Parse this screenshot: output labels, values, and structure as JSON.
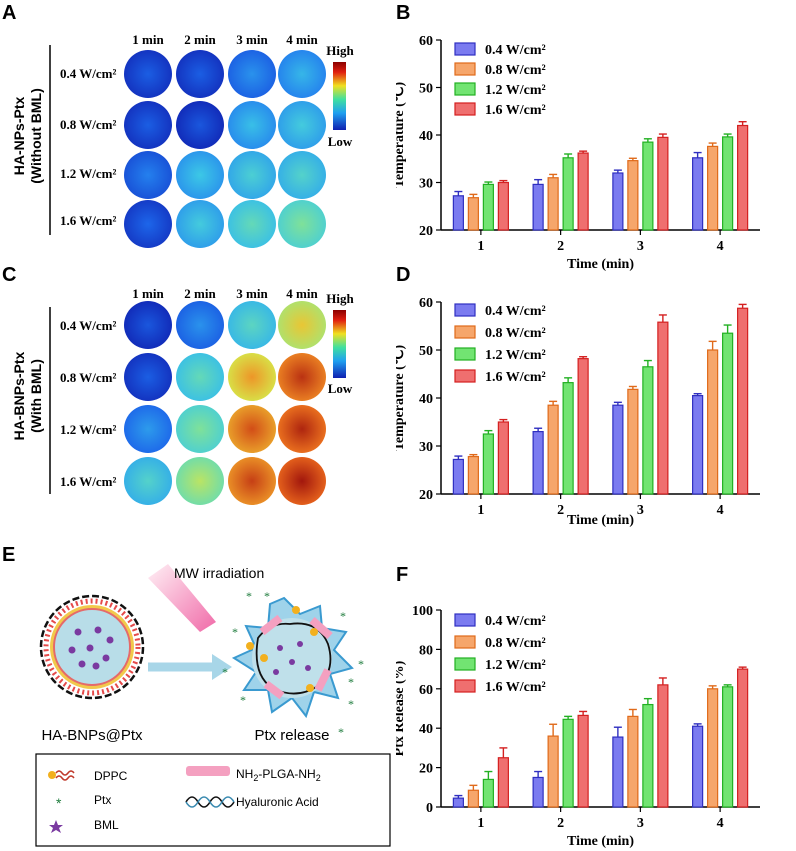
{
  "panel_labels": {
    "A": "A",
    "B": "B",
    "C": "C",
    "D": "D",
    "E": "E",
    "F": "F"
  },
  "colors": {
    "s1": "#7b7bf0",
    "s1_edge": "#2f2fc0",
    "s2": "#f6a66b",
    "s2_edge": "#e06a1a",
    "s3": "#72e472",
    "s3_edge": "#22b022",
    "s4": "#ef6f6f",
    "s4_edge": "#d42020"
  },
  "heatmap_A": {
    "group_label_line1": "HA-NPs-Ptx",
    "group_label_line2": "(Without BML)",
    "times": [
      "1 min",
      "2 min",
      "3 min",
      "4 min"
    ],
    "powers": [
      "0.4 W/cm²",
      "0.8 W/cm²",
      "1.2 W/cm²",
      "1.6 W/cm²"
    ],
    "scale_high": "High",
    "scale_low": "Low",
    "levels": [
      [
        0.1,
        0.1,
        0.22,
        0.3
      ],
      [
        0.1,
        0.08,
        0.32,
        0.36
      ],
      [
        0.18,
        0.34,
        0.38,
        0.4
      ],
      [
        0.12,
        0.36,
        0.44,
        0.5
      ]
    ]
  },
  "heatmap_C": {
    "group_label_line1": "HA-BNPs-Ptx",
    "group_label_line2": "(With BML)",
    "times": [
      "1 min",
      "2 min",
      "3 min",
      "4 min"
    ],
    "powers": [
      "0.4 W/cm²",
      "0.8 W/cm²",
      "1.2 W/cm²",
      "1.6 W/cm²"
    ],
    "scale_high": "High",
    "scale_low": "Low",
    "levels": [
      [
        0.08,
        0.22,
        0.42,
        0.68
      ],
      [
        0.1,
        0.44,
        0.74,
        0.88
      ],
      [
        0.24,
        0.5,
        0.84,
        0.9
      ],
      [
        0.4,
        0.58,
        0.86,
        0.92
      ]
    ]
  },
  "chart_data": [
    {
      "type": "bar",
      "id": "B",
      "categories": [
        "1",
        "2",
        "3",
        "4"
      ],
      "series": [
        {
          "name": "0.4 W/cm²",
          "values": [
            27.2,
            29.6,
            32.0,
            35.2
          ],
          "errors": [
            0.9,
            1.0,
            0.6,
            1.1
          ]
        },
        {
          "name": "0.8 W/cm²",
          "values": [
            26.8,
            31.0,
            34.6,
            37.6
          ],
          "errors": [
            0.7,
            0.7,
            0.5,
            0.7
          ]
        },
        {
          "name": "1.2 W/cm²",
          "values": [
            29.6,
            35.2,
            38.5,
            39.6
          ],
          "errors": [
            0.5,
            0.8,
            0.7,
            0.6
          ]
        },
        {
          "name": "1.6 W/cm²",
          "values": [
            30.0,
            36.2,
            39.5,
            42.0
          ],
          "errors": [
            0.4,
            0.4,
            0.7,
            0.8
          ]
        }
      ],
      "xlabel": "Time (min)",
      "ylabel": "Temperature (℃)",
      "ylim": [
        20,
        60
      ],
      "yticks": [
        20,
        30,
        40,
        50,
        60
      ],
      "legend": "top-left"
    },
    {
      "type": "bar",
      "id": "D",
      "categories": [
        "1",
        "2",
        "3",
        "4"
      ],
      "series": [
        {
          "name": "0.4 W/cm²",
          "values": [
            27.2,
            33.0,
            38.5,
            40.5
          ],
          "errors": [
            0.7,
            0.7,
            0.6,
            0.4
          ]
        },
        {
          "name": "0.8 W/cm²",
          "values": [
            27.8,
            38.5,
            41.8,
            50.0
          ],
          "errors": [
            0.4,
            0.8,
            0.6,
            1.8
          ]
        },
        {
          "name": "1.2 W/cm²",
          "values": [
            32.5,
            43.2,
            46.5,
            53.5
          ],
          "errors": [
            0.7,
            1.0,
            1.3,
            1.7
          ]
        },
        {
          "name": "1.6 W/cm²",
          "values": [
            35.0,
            48.2,
            55.8,
            58.7
          ],
          "errors": [
            0.5,
            0.4,
            1.5,
            0.8
          ]
        }
      ],
      "xlabel": "Time (min)",
      "ylabel": "Temperature (℃)",
      "ylim": [
        20,
        60
      ],
      "yticks": [
        20,
        30,
        40,
        50,
        60
      ],
      "legend": "top-left"
    },
    {
      "type": "bar",
      "id": "F",
      "categories": [
        "1",
        "2",
        "3",
        "4"
      ],
      "series": [
        {
          "name": "0.4 W/cm²",
          "values": [
            4.5,
            15.0,
            35.5,
            41.0
          ],
          "errors": [
            1.3,
            3.0,
            5.0,
            1.2
          ]
        },
        {
          "name": "0.8 W/cm²",
          "values": [
            8.5,
            36.0,
            46.0,
            60.0
          ],
          "errors": [
            2.5,
            6.0,
            3.5,
            1.5
          ]
        },
        {
          "name": "1.2 W/cm²",
          "values": [
            14.0,
            44.5,
            52.0,
            61.0
          ],
          "errors": [
            4.0,
            1.5,
            3.0,
            1.0
          ]
        },
        {
          "name": "1.6 W/cm²",
          "values": [
            25.0,
            46.5,
            62.0,
            70.0
          ],
          "errors": [
            5.0,
            2.0,
            3.5,
            1.0
          ]
        }
      ],
      "xlabel": "Time (min)",
      "ylabel": "Ptx Release (%)",
      "ylim": [
        0,
        100
      ],
      "yticks": [
        0,
        20,
        40,
        60,
        80,
        100
      ],
      "legend": "top-left"
    }
  ],
  "schematic": {
    "mw_label": "MW irradiation",
    "left_caption": "HA-BNPs@Ptx",
    "right_caption": "Ptx release",
    "legend": {
      "dppc": "DPPC",
      "ptx": "Ptx",
      "bml": "BML",
      "plga_prefix": "NH",
      "plga_mid": "-PLGA-NH",
      "sub": "2",
      "ha": "Hyaluronic Acid"
    }
  }
}
